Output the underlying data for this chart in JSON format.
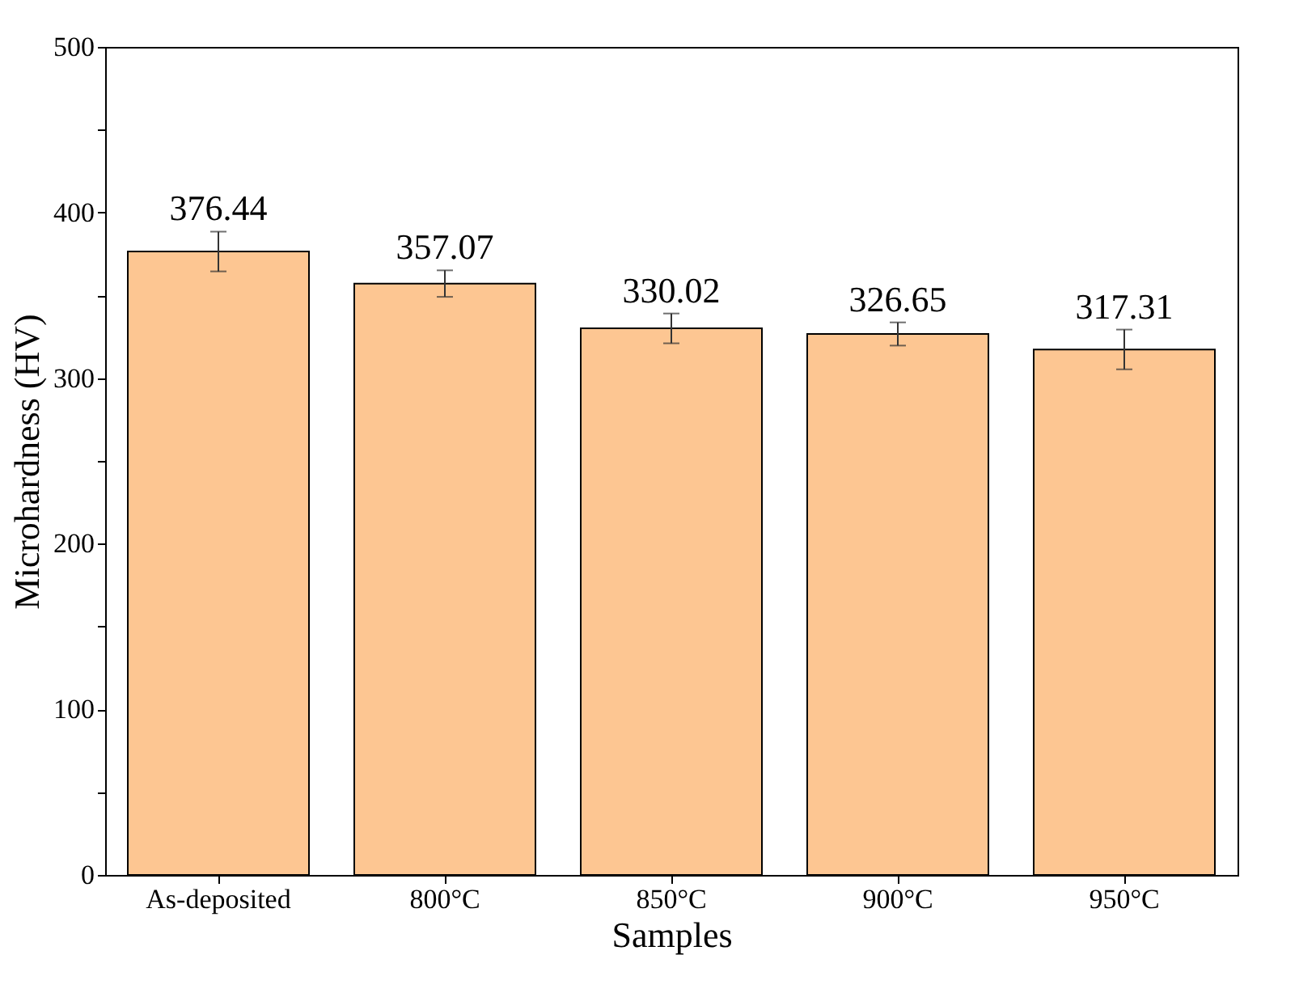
{
  "chart_data": {
    "type": "bar",
    "xlabel": "Samples",
    "ylabel": "Microhardness (HV)",
    "categories": [
      "As-deposited",
      "800°C",
      "850°C",
      "900°C",
      "950°C"
    ],
    "values": [
      376.44,
      357.07,
      330.02,
      326.65,
      317.31
    ],
    "errors": [
      12,
      8,
      9,
      7,
      12
    ],
    "color": "#fdc692",
    "data_labels": true,
    "ylim": [
      0,
      500
    ],
    "yticks": [
      0,
      {
        "value": 50,
        "label": null
      },
      100,
      {
        "value": 150,
        "label": null
      },
      200,
      {
        "value": 250,
        "label": null
      },
      300,
      {
        "value": 350,
        "label": null
      },
      400,
      {
        "value": 450,
        "label": null
      },
      500
    ],
    "grid": false
  }
}
